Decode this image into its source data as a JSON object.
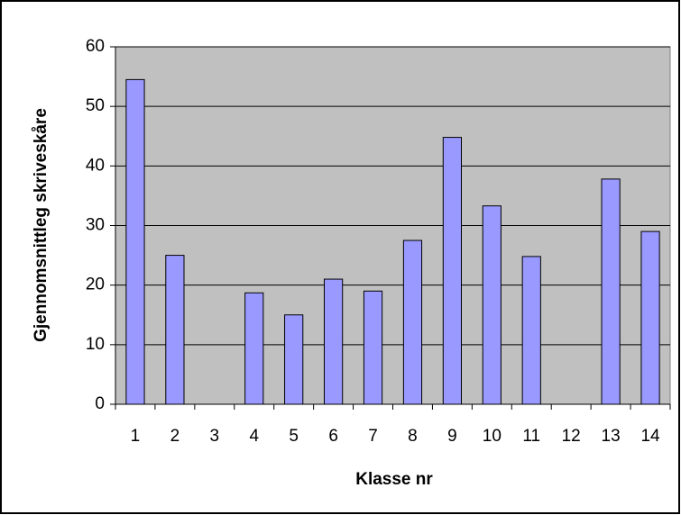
{
  "chart_data": {
    "type": "bar",
    "xlabel": "Klasse nr",
    "ylabel": "Gjennomsnittleg skriveskåre",
    "categories": [
      "1",
      "2",
      "3",
      "4",
      "5",
      "6",
      "7",
      "8",
      "9",
      "10",
      "11",
      "12",
      "13",
      "14"
    ],
    "values": [
      54.5,
      25,
      null,
      18.7,
      15,
      21,
      19,
      27.5,
      44.8,
      33.3,
      24.8,
      null,
      37.8,
      29
    ],
    "color": "#9999ff",
    "ylim": [
      0,
      60
    ],
    "yticks": [
      0,
      10,
      20,
      30,
      40,
      50,
      60
    ],
    "grid": true
  }
}
